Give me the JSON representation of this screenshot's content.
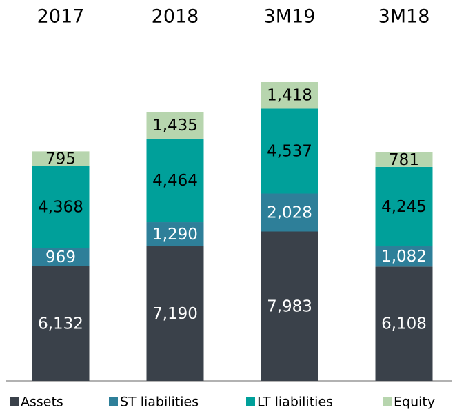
{
  "chart_data": {
    "type": "stacked_bar",
    "categories": [
      "2017",
      "2018",
      "3M19",
      "3M18"
    ],
    "series": [
      {
        "name": "Assets",
        "color": "#3a414a",
        "values": [
          6132,
          7190,
          7983,
          6108
        ],
        "value_labels": [
          "6,132",
          "7,190",
          "7,983",
          "6,108"
        ]
      },
      {
        "name": "ST liabilities",
        "color": "#2e7f99",
        "values": [
          969,
          1290,
          2028,
          1082
        ],
        "value_labels": [
          "969",
          "1,290",
          "2,028",
          "1,082"
        ]
      },
      {
        "name": "LT liabilities",
        "color": "#00a09a",
        "values": [
          4368,
          4464,
          4537,
          4245
        ],
        "value_labels": [
          "4,368",
          "4,464",
          "4,537",
          "4,245"
        ]
      },
      {
        "name": "Equity",
        "color": "#b7d5ae",
        "values": [
          795,
          1435,
          1418,
          781
        ],
        "value_labels": [
          "795",
          "1,435",
          "1,418",
          "781"
        ]
      }
    ],
    "legend": "bottom"
  }
}
